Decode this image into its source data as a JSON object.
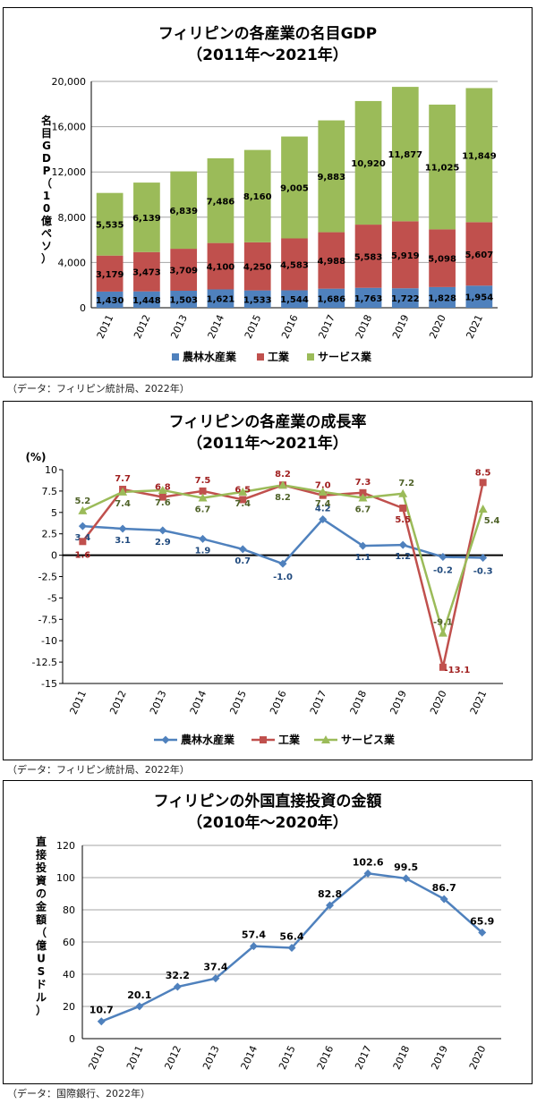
{
  "chart_data": [
    {
      "type": "bar",
      "stacked": true,
      "title": "フィリピンの各産業の名目GDP",
      "subtitle": "（2011年～2021年）",
      "ylabel": "名目GDP（10億ペソ）",
      "ylim": [
        0,
        20000
      ],
      "yticks": [
        "0",
        "4,000",
        "8,000",
        "12,000",
        "16,000",
        "20,000"
      ],
      "ytick_values": [
        0,
        4000,
        8000,
        12000,
        16000,
        20000
      ],
      "categories": [
        "2011",
        "2012",
        "2013",
        "2014",
        "2015",
        "2016",
        "2017",
        "2018",
        "2019",
        "2020",
        "2021"
      ],
      "legend_position": "bottom",
      "series": [
        {
          "name": "農林水産業",
          "color": "#4f81bd",
          "values": [
            1430,
            1448,
            1503,
            1621,
            1533,
            1544,
            1686,
            1763,
            1722,
            1828,
            1954
          ],
          "labels": [
            "1,430",
            "1,448",
            "1,503",
            "1,621",
            "1,533",
            "1,544",
            "1,686",
            "1,763",
            "1,722",
            "1,828",
            "1,954"
          ]
        },
        {
          "name": "工業",
          "color": "#c0504d",
          "values": [
            3179,
            3473,
            3709,
            4100,
            4250,
            4583,
            4988,
            5583,
            5919,
            5098,
            5607
          ],
          "labels": [
            "3,179",
            "3,473",
            "3,709",
            "4,100",
            "4,250",
            "4,583",
            "4,988",
            "5,583",
            "5,919",
            "5,098",
            "5,607"
          ]
        },
        {
          "name": "サービス業",
          "color": "#9bbb59",
          "values": [
            5535,
            6139,
            6839,
            7486,
            8160,
            9005,
            9883,
            10920,
            11877,
            11025,
            11849
          ],
          "labels": [
            "5,535",
            "6,139",
            "6,839",
            "7,486",
            "8,160",
            "9,005",
            "9,883",
            "10,920",
            "11,877",
            "11,025",
            "11,849"
          ]
        }
      ],
      "source": "（データ：フィリピン統計局、2022年）"
    },
    {
      "type": "line",
      "title": "フィリピンの各産業の成長率",
      "subtitle": "（2011年～2021年）",
      "yunit": "(%)",
      "ylim": [
        -15,
        10
      ],
      "yticks": [
        "10",
        "7.5",
        "5",
        "2.5",
        "0",
        "-2.5",
        "-5",
        "-7.5",
        "-10",
        "-12.5",
        "-15"
      ],
      "ytick_values": [
        10,
        7.5,
        5,
        2.5,
        0,
        -2.5,
        -5,
        -7.5,
        -10,
        -12.5,
        -15
      ],
      "categories": [
        "2011",
        "2012",
        "2013",
        "2014",
        "2015",
        "2016",
        "2017",
        "2018",
        "2019",
        "2020",
        "2021"
      ],
      "legend_position": "bottom",
      "series": [
        {
          "name": "農林水産業",
          "color": "#4f81bd",
          "marker": "diamond",
          "values": [
            3.4,
            3.1,
            2.9,
            1.9,
            0.7,
            -1.0,
            4.2,
            1.1,
            1.2,
            -0.2,
            -0.3
          ],
          "labels": [
            "3.4",
            "3.1",
            "2.9",
            "1.9",
            "0.7",
            "-1.0",
            "4.2",
            "1.1",
            "1.2",
            "-0.2",
            "-0.3"
          ]
        },
        {
          "name": "工業",
          "color": "#c0504d",
          "marker": "square",
          "values": [
            1.6,
            7.7,
            6.8,
            7.5,
            6.5,
            8.2,
            7.0,
            7.3,
            5.5,
            -13.1,
            8.5
          ],
          "labels": [
            "1.6",
            "7.7",
            "6.8",
            "7.5",
            "6.5",
            "8.2",
            "7.0",
            "7.3",
            "5.5",
            "-13.1",
            "8.5"
          ]
        },
        {
          "name": "サービス業",
          "color": "#9bbb59",
          "marker": "triangle",
          "values": [
            5.2,
            7.4,
            7.6,
            6.7,
            7.4,
            8.2,
            7.4,
            6.7,
            7.2,
            -9.1,
            5.4
          ],
          "labels": [
            "5.2",
            "7.4",
            "7.6",
            "6.7",
            "7.4",
            "8.2",
            "7.4",
            "6.7",
            "7.2",
            "-9.1",
            "5.4"
          ]
        }
      ],
      "source": "（データ：フィリピン統計局、2022年）"
    },
    {
      "type": "line",
      "title": "フィリピンの外国直接投資の金額",
      "subtitle": "（2010年～2020年）",
      "ylabel": "直接投資の金額（億USドル）",
      "ylim": [
        0,
        120
      ],
      "yticks": [
        "0",
        "20",
        "40",
        "60",
        "80",
        "100",
        "120"
      ],
      "ytick_values": [
        0,
        20,
        40,
        60,
        80,
        100,
        120
      ],
      "categories": [
        "2010",
        "2011",
        "2012",
        "2013",
        "2014",
        "2015",
        "2016",
        "2017",
        "2018",
        "2019",
        "2020"
      ],
      "series": [
        {
          "color": "#4f81bd",
          "marker": "diamond",
          "values": [
            10.7,
            20.1,
            32.2,
            37.4,
            57.4,
            56.4,
            82.8,
            102.6,
            99.5,
            86.7,
            65.9
          ],
          "labels": [
            "10.7",
            "20.1",
            "32.2",
            "37.4",
            "57.4",
            "56.4",
            "82.8",
            "102.6",
            "99.5",
            "86.7",
            "65.9"
          ]
        }
      ],
      "source": "（データ：国際銀行、2022年）"
    }
  ]
}
